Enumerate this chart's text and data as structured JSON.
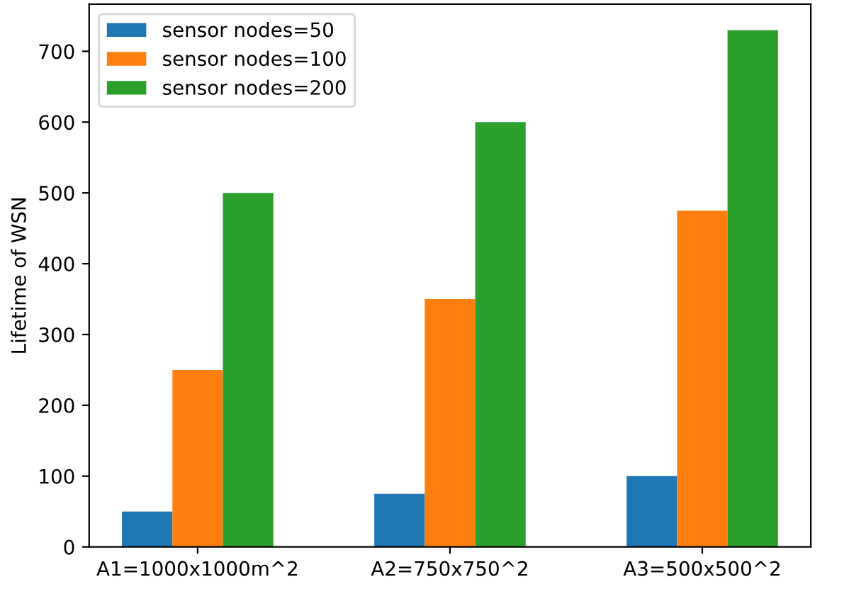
{
  "chart_data": {
    "type": "bar",
    "ylabel": "Lifetime of WSN",
    "categories": [
      "A1=1000x1000m^2",
      "A2=750x750^2",
      "A3=500x500^2"
    ],
    "series": [
      {
        "name": "sensor nodes=50",
        "color": "#1f77b4",
        "values": [
          50,
          75,
          100
        ]
      },
      {
        "name": "sensor nodes=100",
        "color": "#ff7f0e",
        "values": [
          250,
          350,
          475
        ]
      },
      {
        "name": "sensor nodes=200",
        "color": "#2ca02c",
        "values": [
          500,
          600,
          730
        ]
      }
    ],
    "ylim": [
      0,
      766.5
    ],
    "yticks": [
      0,
      100,
      200,
      300,
      400,
      500,
      600,
      700
    ],
    "grid": false,
    "legend": "top left"
  }
}
